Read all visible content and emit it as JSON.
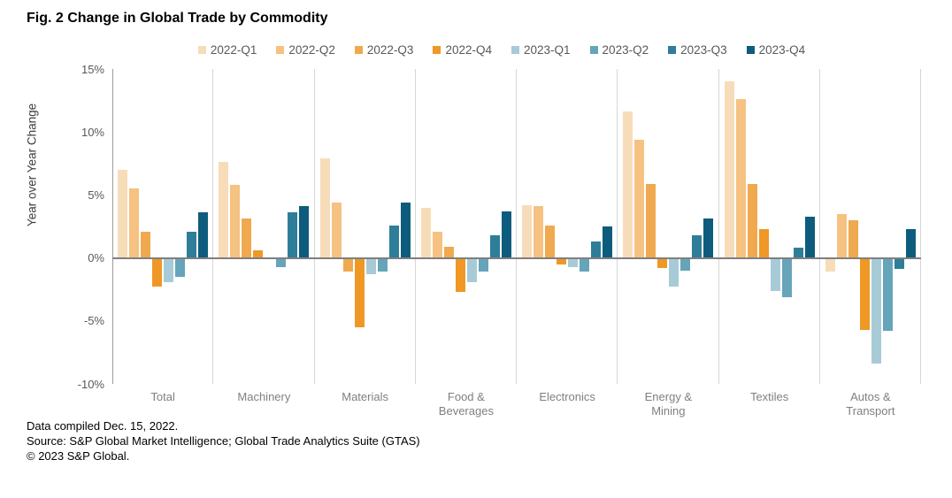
{
  "title": "Fig. 2 Change in Global Trade by Commodity",
  "chart_data": {
    "type": "bar",
    "title": "Fig. 2 Change in Global Trade by Commodity",
    "xlabel": "",
    "ylabel": "Year over Year Change",
    "ylim": [
      -10,
      15
    ],
    "yticks": [
      15,
      10,
      5,
      0,
      -5,
      -10
    ],
    "ytick_labels": [
      "15%",
      "10%",
      "5%",
      "0%",
      "-5%",
      "-10%"
    ],
    "grid": "vertical-category-separators-only",
    "legend_position": "top",
    "categories": [
      "Total",
      "Machinery",
      "Materials",
      "Food &\nBeverages",
      "Electronics",
      "Energy &\nMining",
      "Textiles",
      "Autos &\nTransport"
    ],
    "series": [
      {
        "name": "2022-Q1",
        "color": "#F7DCB9",
        "values": [
          7.0,
          7.6,
          7.9,
          4.0,
          4.2,
          11.6,
          14.0,
          -1.1
        ]
      },
      {
        "name": "2022-Q2",
        "color": "#F5C282",
        "values": [
          5.5,
          5.8,
          4.4,
          2.1,
          4.1,
          9.4,
          12.6,
          3.5
        ]
      },
      {
        "name": "2022-Q3",
        "color": "#F0A94F",
        "values": [
          2.1,
          3.1,
          -1.1,
          0.9,
          2.6,
          5.9,
          5.9,
          3.0
        ]
      },
      {
        "name": "2022-Q4",
        "color": "#EF9826",
        "values": [
          -2.3,
          0.6,
          -5.5,
          -2.7,
          -0.5,
          -0.8,
          2.3,
          -5.7
        ]
      },
      {
        "name": "2023-Q1",
        "color": "#A7CBD6",
        "values": [
          -1.9,
          0.0,
          -1.3,
          -1.9,
          -0.7,
          -2.3,
          -2.6,
          -8.4
        ]
      },
      {
        "name": "2023-Q2",
        "color": "#66A4BA",
        "values": [
          -1.5,
          -0.7,
          -1.1,
          -1.1,
          -1.1,
          -1.0,
          -3.1,
          -5.8
        ]
      },
      {
        "name": "2023-Q3",
        "color": "#2E7E9A",
        "values": [
          2.1,
          3.6,
          2.6,
          1.8,
          1.3,
          1.8,
          0.8,
          -0.9
        ]
      },
      {
        "name": "2023-Q4",
        "color": "#0E5C7D",
        "values": [
          3.6,
          4.1,
          4.4,
          3.7,
          2.5,
          3.1,
          3.3,
          2.3
        ]
      }
    ]
  },
  "footer": {
    "line1": "Data compiled Dec. 15, 2022.",
    "line2": "Source: S&P Global Market Intelligence; Global Trade Analytics Suite (GTAS)",
    "line3": "© 2023 S&P Global."
  }
}
